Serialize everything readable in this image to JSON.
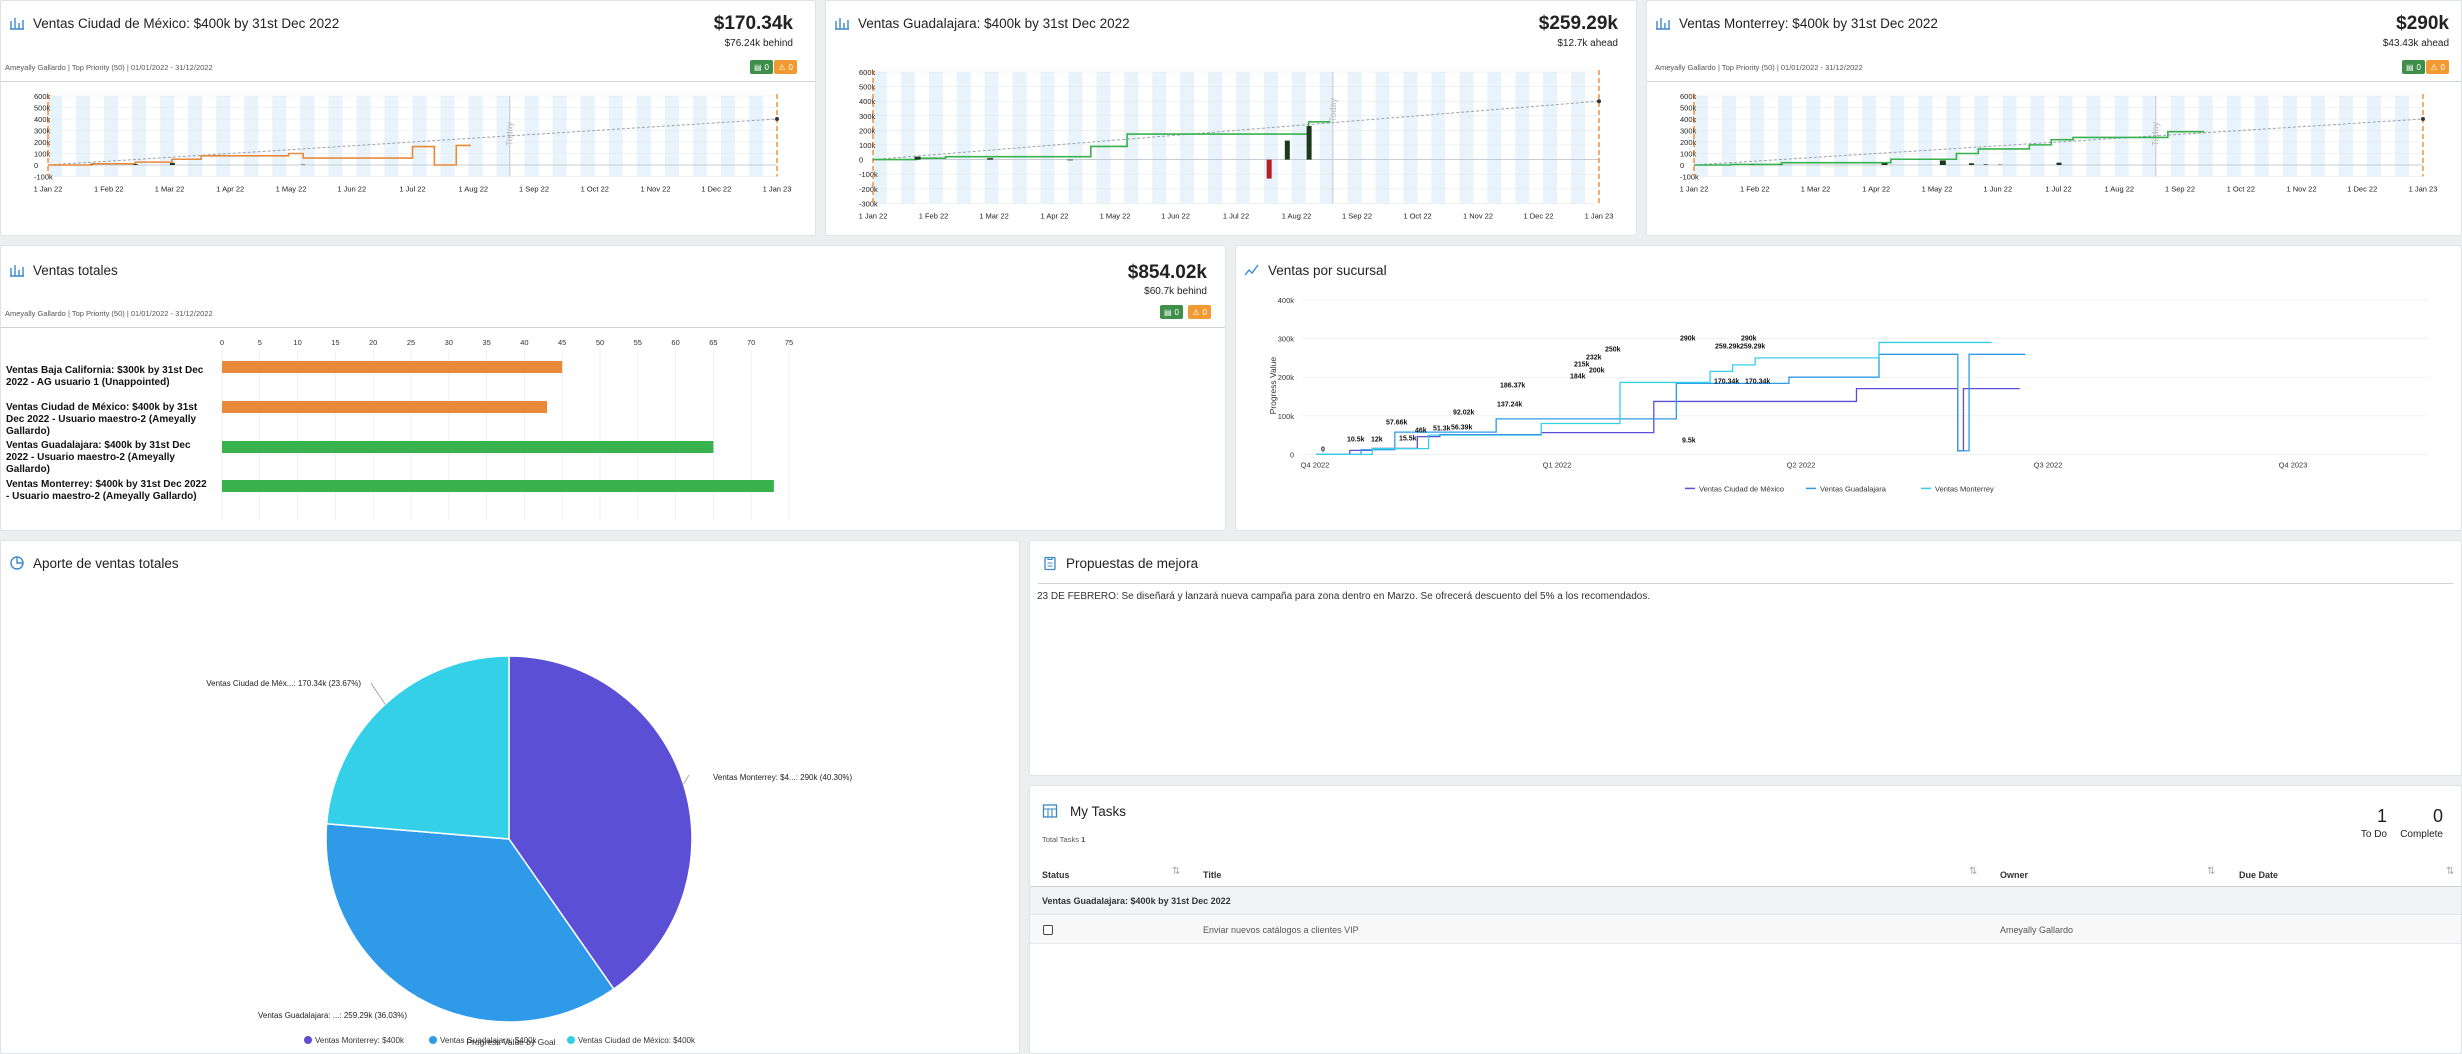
{
  "colors": {
    "orange": "#e8893a",
    "green": "#37b24d",
    "dark": "#1b3a1b",
    "red": "#b81f24",
    "purple": "#5b4fd6",
    "blue": "#2f9ae8",
    "cyan": "#33d0e8",
    "today": "#aaaaaa"
  },
  "goals": [
    {
      "title": "Ventas Ciudad de México: $400k by 31st Dec 2022",
      "value": "$170.34k",
      "delta": "$76.24k behind",
      "meta": "Ameyally Gallardo | Top Priority (50) | 01/01/2022 - 31/12/2022",
      "comments": "0",
      "warnings": "0",
      "yticks": [
        "600k",
        "500k",
        "400k",
        "300k",
        "200k",
        "100k",
        "0",
        "-100k"
      ],
      "xticks": [
        "1 Jan 22",
        "1 Feb 22",
        "1 Mar 22",
        "1 Apr 22",
        "1 May 22",
        "1 Jun 22",
        "1 Jul 22",
        "1 Aug 22",
        "1 Sep 22",
        "1 Oct 22",
        "1 Nov 22",
        "1 Dec 22",
        "1 Jan 23"
      ],
      "today_label": "Today"
    },
    {
      "title": "Ventas Guadalajara: $400k by 31st Dec 2022",
      "value": "$259.29k",
      "delta": "$12.7k ahead",
      "meta": "",
      "yticks": [
        "600k",
        "500k",
        "400k",
        "300k",
        "200k",
        "100k",
        "0",
        "-100k",
        "-200k",
        "-300k"
      ],
      "xticks": [
        "1 Jan 22",
        "1 Feb 22",
        "1 Mar 22",
        "1 Apr 22",
        "1 May 22",
        "1 Jun 22",
        "1 Jul 22",
        "1 Aug 22",
        "1 Sep 22",
        "1 Oct 22",
        "1 Nov 22",
        "1 Dec 22",
        "1 Jan 23"
      ],
      "today_label": "Today"
    },
    {
      "title": "Ventas Monterrey: $400k by 31st Dec 2022",
      "value": "$290k",
      "delta": "$43.43k ahead",
      "meta": "Ameyally Gallardo | Top Priority (50) | 01/01/2022 - 31/12/2022",
      "comments": "0",
      "warnings": "0",
      "yticks": [
        "600k",
        "500k",
        "400k",
        "300k",
        "200k",
        "100k",
        "0",
        "-100k"
      ],
      "xticks": [
        "1 Jan 22",
        "1 Feb 22",
        "1 Mar 22",
        "1 Apr 22",
        "1 May 22",
        "1 Jun 22",
        "1 Jul 22",
        "1 Aug 22",
        "1 Sep 22",
        "1 Oct 22",
        "1 Nov 22",
        "1 Dec 22",
        "1 Jan 23"
      ],
      "today_label": "Today"
    }
  ],
  "totales": {
    "title": "Ventas totales",
    "value": "$854.02k",
    "delta": "$60.7k behind",
    "meta": "Ameyally Gallardo | Top Priority (50) | 01/01/2022 - 31/12/2022",
    "comments": "0",
    "warnings": "0",
    "ticks": [
      "0",
      "5",
      "10",
      "15",
      "20",
      "25",
      "30",
      "35",
      "40",
      "45",
      "50",
      "55",
      "60",
      "65",
      "70",
      "75"
    ],
    "bars": [
      {
        "label": "Ventas Baja California: $300k by 31st Dec 2022 - AG usuario 1 (Unappointed)",
        "value": 45,
        "color": "#e8893a"
      },
      {
        "label": "Ventas Ciudad de México: $400k by 31st Dec 2022 - Usuario maestro-2 (Ameyally Gallardo)",
        "value": 43,
        "color": "#e8893a"
      },
      {
        "label": "Ventas Guadalajara: $400k by 31st Dec 2022 - Usuario maestro-2 (Ameyally Gallardo)",
        "value": 65,
        "color": "#37b24d"
      },
      {
        "label": "Ventas Monterrey: $400k by 31st Dec 2022 - Usuario maestro-2 (Ameyally Gallardo)",
        "value": 73,
        "color": "#37b24d"
      }
    ]
  },
  "sucursal": {
    "title": "Ventas por sucursal",
    "ylabel": "Progress Value",
    "yticks": [
      "400k",
      "300k",
      "200k",
      "100k",
      "0"
    ],
    "xticks": [
      "Q4 2022",
      "Q1 2022",
      "Q2 2022",
      "Q3 2022",
      "Q4 2023"
    ],
    "legend": [
      "Ventas Ciudad de México",
      "Ventas Guadalajara",
      "Ventas Monterrey"
    ],
    "labels": [
      "0",
      "10.5k",
      "12k",
      "57.66k",
      "15.5k",
      "46k",
      "51.3k",
      "92.02k",
      "56.39k",
      "186.37k",
      "137.24k",
      "215k",
      "232k",
      "250k",
      "200k",
      "184k",
      "290k",
      "259.29k",
      "290k",
      "259.29k",
      "170.34k",
      "170.34k",
      "9.5k"
    ]
  },
  "aporte": {
    "title": "Aporte de ventas totales",
    "footer": "Progress Value by Goal",
    "slices": [
      {
        "name": "Ventas Monterrey: $400k",
        "label": "Ventas Monterrey: $4...: 290k (40.30%)",
        "pct": 40.3,
        "color": "#5b4fd6"
      },
      {
        "name": "Ventas Guadalajara: $400k",
        "label": "Ventas Guadalajara: ...: 259.29k (36.03%)",
        "pct": 36.03,
        "color": "#2f9ae8"
      },
      {
        "name": "Ventas Ciudad de México: $400k",
        "label": "Ventas Ciudad de Méx...: 170.34k (23.67%)",
        "pct": 23.67,
        "color": "#33d0e8"
      }
    ]
  },
  "propuestas": {
    "title": "Propuestas de mejora",
    "text": "23 DE FEBRERO: Se diseñará y lanzará nueva campaña para zona dentro en Marzo.  Se ofrecerá descuento del 5% a los recomendados."
  },
  "tasks": {
    "title": "My Tasks",
    "total_label": "Total Tasks",
    "total": "1",
    "todo": "1",
    "todo_label": "To Do",
    "complete": "0",
    "complete_label": "Complete",
    "columns": [
      "Status",
      "Title",
      "Owner",
      "Due Date"
    ],
    "group": "Ventas Guadalajara: $400k by 31st Dec 2022",
    "rows": [
      {
        "title": "Enviar nuevos catálogos a clientes VIP",
        "owner": "Ameyally Gallardo",
        "due": ""
      }
    ]
  }
}
